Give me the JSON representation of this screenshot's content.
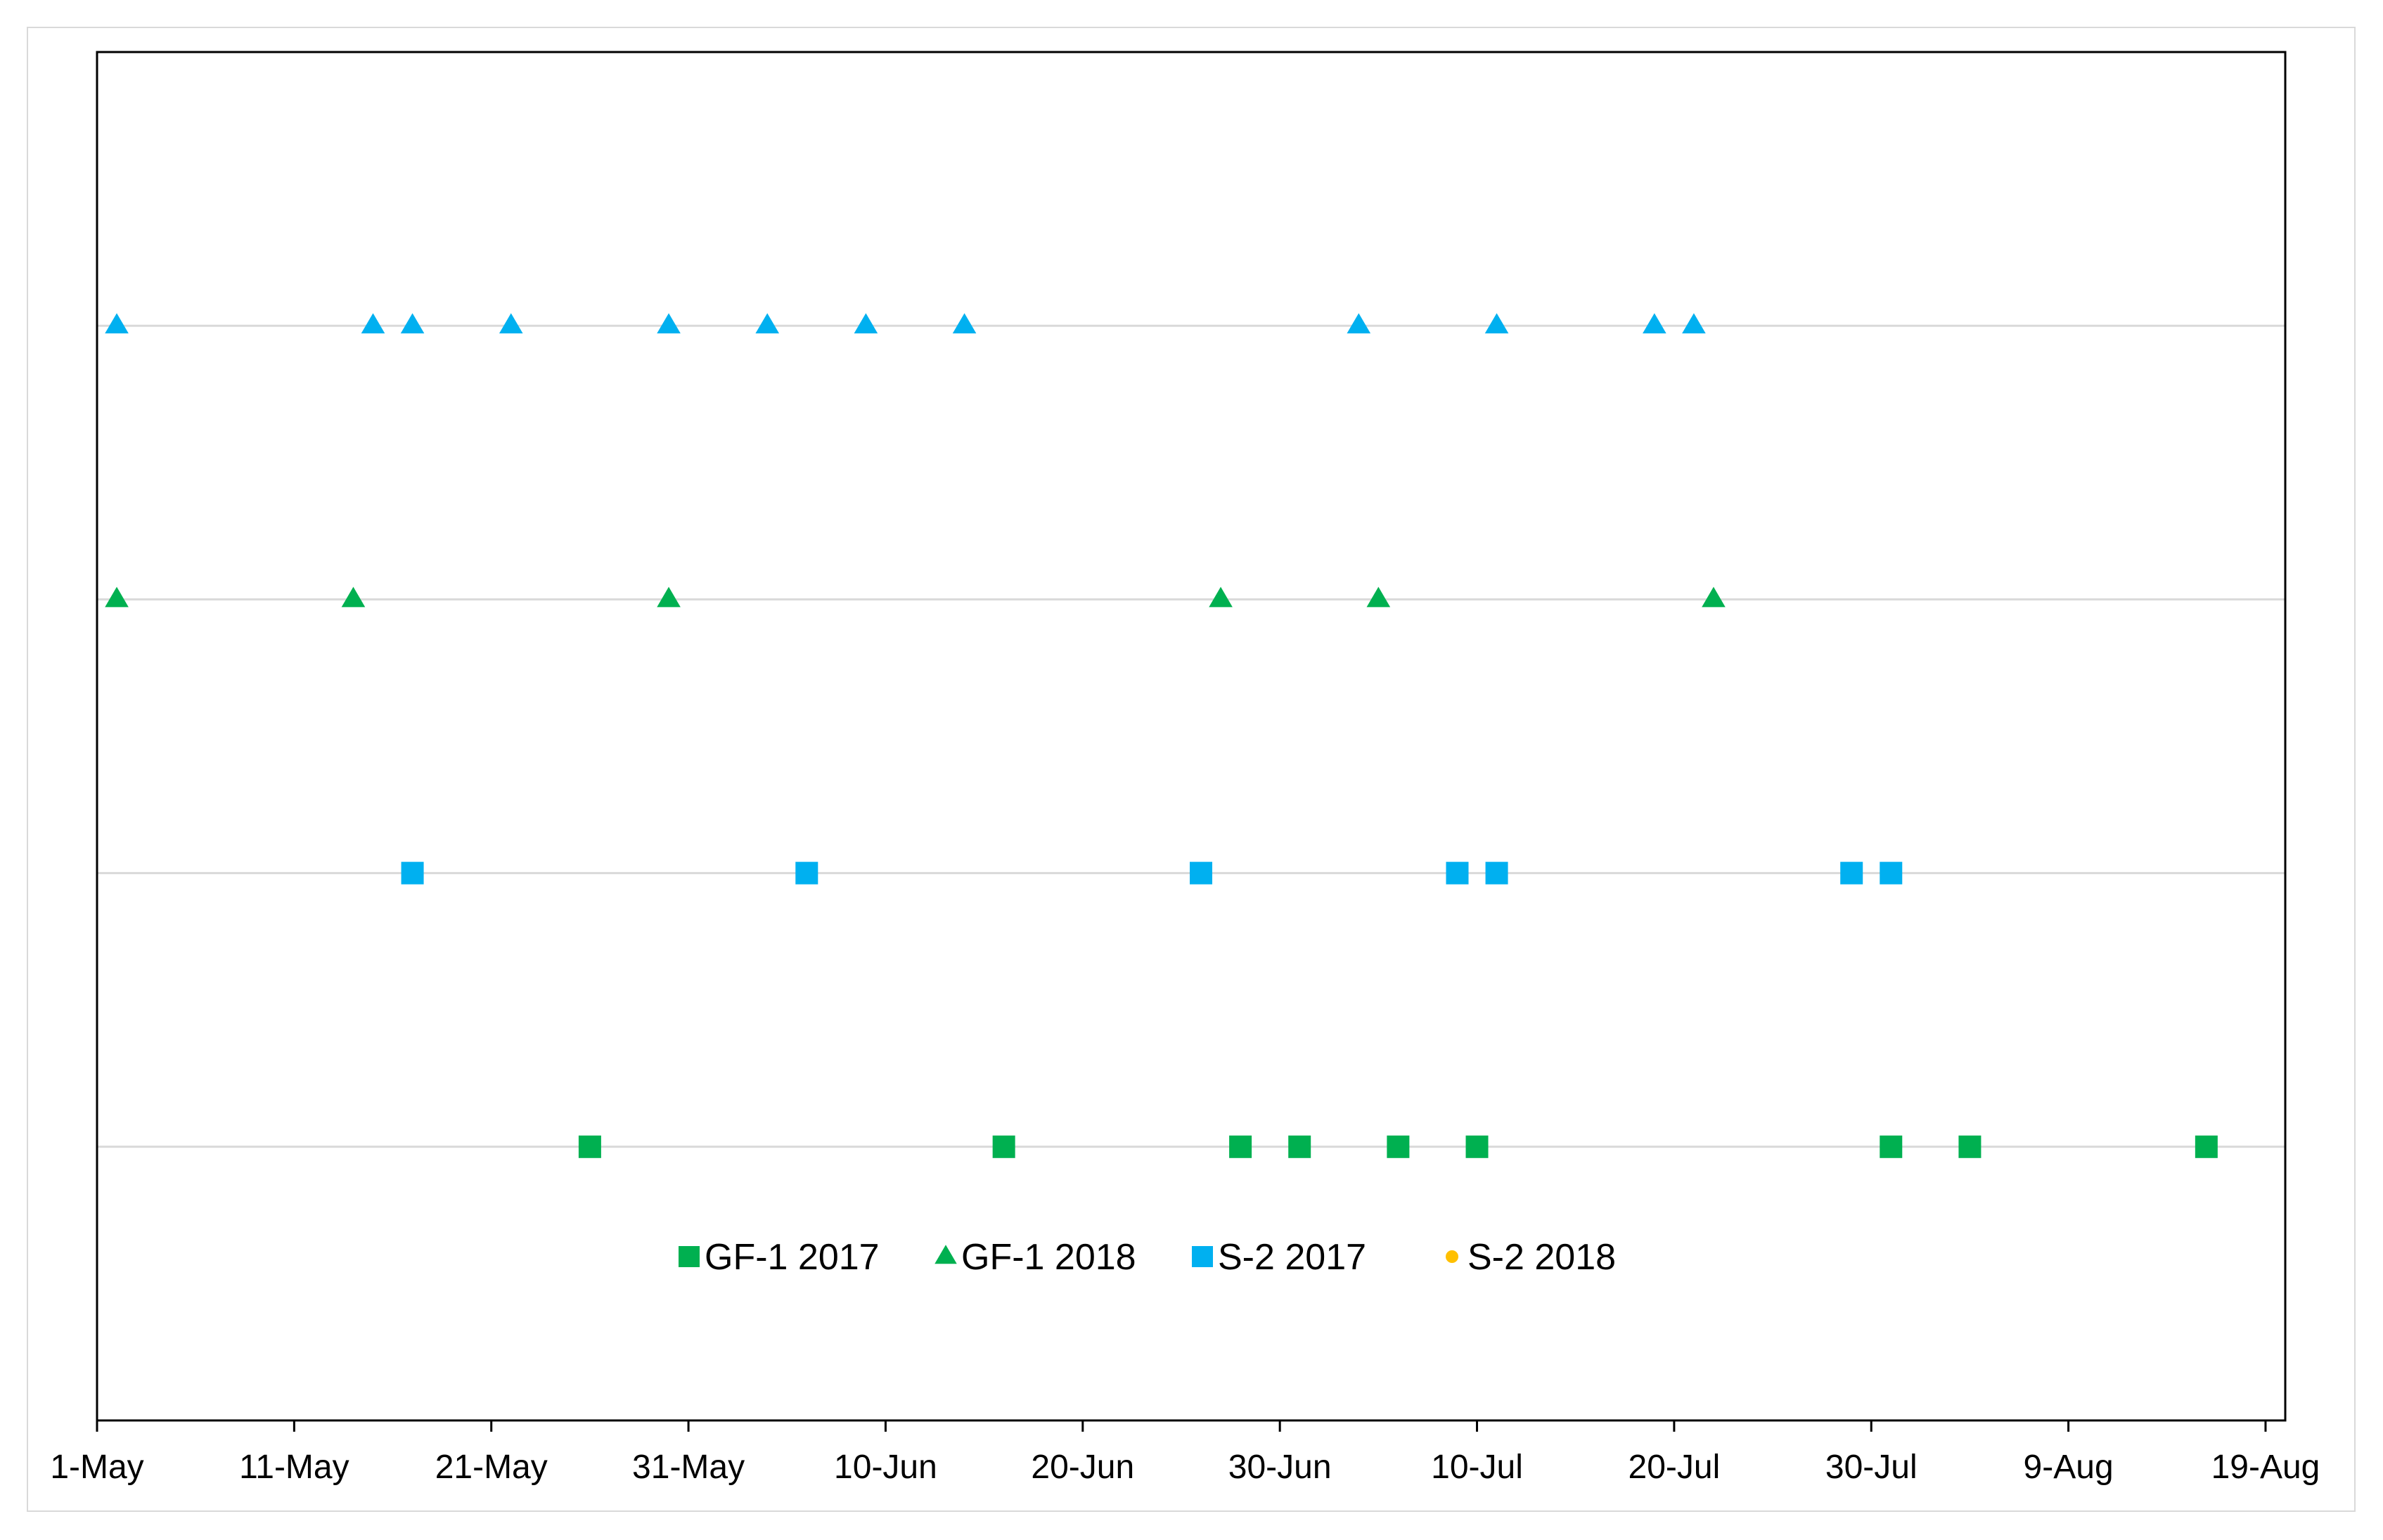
{
  "chart_data": {
    "type": "scatter",
    "title": "",
    "xlabel": "",
    "ylabel": "",
    "x_range": [
      "2018-05-01",
      "2018-08-20"
    ],
    "x_ticks": [
      {
        "date": "2018-05-01",
        "label": "1-May"
      },
      {
        "date": "2018-05-11",
        "label": "11-May"
      },
      {
        "date": "2018-05-21",
        "label": "21-May"
      },
      {
        "date": "2018-05-31",
        "label": "31-May"
      },
      {
        "date": "2018-06-10",
        "label": "10-Jun"
      },
      {
        "date": "2018-06-20",
        "label": "20-Jun"
      },
      {
        "date": "2018-06-30",
        "label": "30-Jun"
      },
      {
        "date": "2018-07-10",
        "label": "10-Jul"
      },
      {
        "date": "2018-07-20",
        "label": "20-Jul"
      },
      {
        "date": "2018-07-30",
        "label": "30-Jul"
      },
      {
        "date": "2018-08-09",
        "label": "9-Aug"
      },
      {
        "date": "2018-08-19",
        "label": "19-Aug"
      }
    ],
    "y_range": [
      0,
      5
    ],
    "y_axis_labels": "none",
    "grid": "horizontal lines at y = 1, 2, 3, 4",
    "legend_position": "bottom-center, inside plot",
    "series": [
      {
        "name": "GF-1 2017",
        "marker": "square",
        "color": "#00b050",
        "y": 1,
        "x": [
          "2018-05-26",
          "2018-06-16",
          "2018-06-28",
          "2018-07-01",
          "2018-07-06",
          "2018-07-10",
          "2018-07-31",
          "2018-08-04",
          "2018-08-16"
        ]
      },
      {
        "name": "GF-1 2018",
        "marker": "triangle",
        "color": "#00b050",
        "y": 3,
        "x": [
          "2018-05-02",
          "2018-05-14",
          "2018-05-30",
          "2018-06-27",
          "2018-07-05",
          "2018-07-22"
        ]
      },
      {
        "name": "S-2 2017",
        "marker": "square",
        "color": "#00b0f0",
        "y": 2,
        "x": [
          "2018-05-17",
          "2018-06-06",
          "2018-06-26",
          "2018-07-09",
          "2018-07-11",
          "2018-07-29",
          "2018-07-31"
        ]
      },
      {
        "name": "S-2 2018",
        "marker": "circle",
        "color": "#ffc000",
        "y": 4,
        "x": []
      },
      {
        "name": "",
        "marker": "triangle",
        "color": "#00b0f0",
        "y": 4,
        "x": [
          "2018-05-02",
          "2018-05-15",
          "2018-05-17",
          "2018-05-22",
          "2018-05-30",
          "2018-06-04",
          "2018-06-09",
          "2018-06-14",
          "2018-07-04",
          "2018-07-11",
          "2018-07-19",
          "2018-07-21"
        ]
      }
    ]
  }
}
